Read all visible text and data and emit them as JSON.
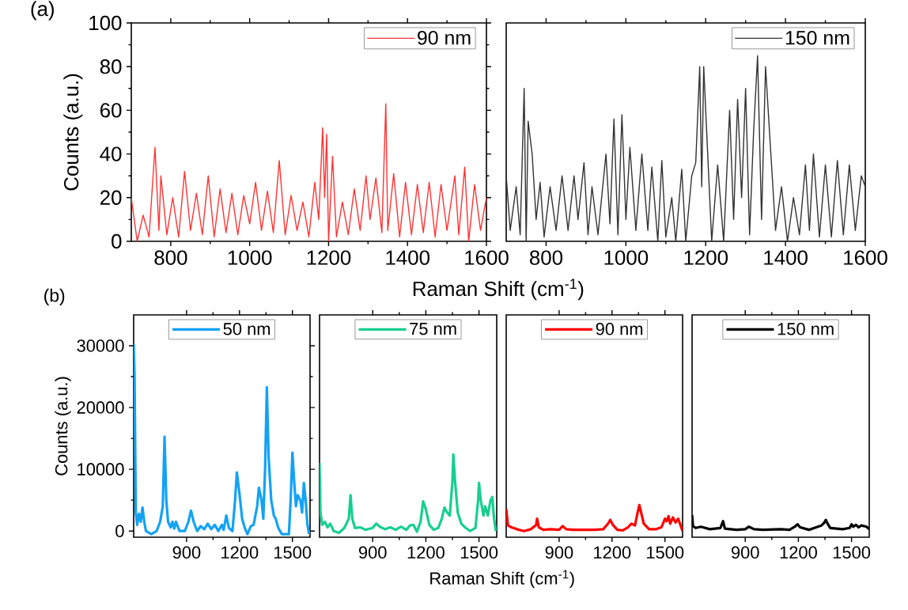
{
  "chart_data": [
    {
      "type": "line",
      "xlabel": "Raman Shift (cm$^{-1}$)",
      "ylabel": "Counts (a.u.)",
      "annotations": [
        "(a)"
      ],
      "xlim": [
        700,
        1600
      ],
      "ylim": [
        0,
        100
      ],
      "xticks": [
        800,
        1000,
        1200,
        1400,
        1600
      ],
      "yticks": [
        0,
        20,
        40,
        60,
        80,
        100
      ],
      "legend": "top right",
      "marker": "none",
      "line_style": "solid",
      "series": [
        {
          "name": "90 nm",
          "color": "#ff3333",
          "x": [
            700,
            715,
            730,
            745,
            760,
            770,
            775,
            790,
            805,
            820,
            835,
            850,
            865,
            880,
            895,
            910,
            925,
            940,
            955,
            970,
            985,
            1000,
            1015,
            1030,
            1045,
            1060,
            1075,
            1090,
            1105,
            1120,
            1135,
            1150,
            1165,
            1175,
            1185,
            1190,
            1195,
            1200,
            1210,
            1220,
            1235,
            1250,
            1265,
            1280,
            1295,
            1305,
            1320,
            1335,
            1345,
            1350,
            1365,
            1380,
            1395,
            1410,
            1425,
            1440,
            1455,
            1470,
            1485,
            1500,
            1520,
            1530,
            1545,
            1555,
            1570,
            1585,
            1600
          ],
          "values": [
            20,
            0,
            12,
            2,
            43,
            5,
            30,
            3,
            20,
            2,
            32,
            5,
            22,
            3,
            30,
            2,
            24,
            4,
            22,
            3,
            21,
            8,
            27,
            5,
            23,
            4,
            37,
            3,
            21,
            5,
            18,
            2,
            27,
            10,
            52,
            20,
            49,
            0,
            39,
            2,
            18,
            3,
            24,
            5,
            30,
            10,
            29,
            4,
            63,
            5,
            31,
            2,
            27,
            3,
            26,
            4,
            27,
            2,
            26,
            5,
            30,
            3,
            34,
            0,
            26,
            5,
            20
          ]
        }
      ]
    },
    {
      "type": "line",
      "xlim": [
        700,
        1600
      ],
      "ylim": [
        0,
        100
      ],
      "xticks": [
        800,
        1000,
        1200,
        1400,
        1600
      ],
      "tick_labels": "x",
      "legend": "top right",
      "marker": "none",
      "line_style": "solid",
      "series": [
        {
          "name": "150 nm",
          "color": "#333333",
          "x": [
            700,
            710,
            725,
            735,
            745,
            750,
            755,
            765,
            775,
            785,
            795,
            810,
            825,
            840,
            855,
            870,
            880,
            895,
            905,
            915,
            930,
            950,
            960,
            970,
            980,
            990,
            1000,
            1010,
            1025,
            1040,
            1055,
            1065,
            1080,
            1090,
            1100,
            1115,
            1125,
            1140,
            1150,
            1165,
            1175,
            1185,
            1190,
            1195,
            1205,
            1215,
            1230,
            1245,
            1260,
            1270,
            1280,
            1290,
            1300,
            1310,
            1320,
            1330,
            1340,
            1350,
            1360,
            1375,
            1390,
            1405,
            1420,
            1435,
            1450,
            1460,
            1470,
            1485,
            1500,
            1515,
            1530,
            1545,
            1560,
            1575,
            1590,
            1600
          ],
          "values": [
            30,
            5,
            25,
            3,
            70,
            0,
            55,
            40,
            10,
            27,
            2,
            25,
            5,
            30,
            5,
            30,
            10,
            36,
            3,
            25,
            3,
            40,
            8,
            56,
            3,
            58,
            10,
            43,
            5,
            40,
            5,
            34,
            0,
            37,
            2,
            20,
            0,
            33,
            0,
            30,
            36,
            80,
            25,
            80,
            40,
            0,
            35,
            0,
            60,
            10,
            65,
            20,
            70,
            3,
            50,
            85,
            10,
            80,
            50,
            5,
            25,
            0,
            20,
            3,
            35,
            5,
            40,
            2,
            35,
            2,
            37,
            3,
            35,
            5,
            30,
            25
          ]
        }
      ]
    },
    {
      "type": "line",
      "ylabel": "Counts (a.u.)",
      "annotations": [
        "(b)"
      ],
      "xlim": [
        600,
        1600
      ],
      "ylim": [
        -1000,
        35000
      ],
      "xticks": [
        900,
        1200,
        1500
      ],
      "yticks": [
        0,
        10000,
        20000,
        30000
      ],
      "legend": "top",
      "marker": "none",
      "line_style": "solid",
      "series": [
        {
          "name": "50 nm",
          "color": "#12a2f5",
          "x": [
            600,
            605,
            612,
            620,
            630,
            640,
            650,
            660,
            670,
            700,
            730,
            750,
            765,
            775,
            785,
            795,
            810,
            820,
            830,
            840,
            860,
            890,
            910,
            925,
            940,
            960,
            980,
            1000,
            1020,
            1040,
            1060,
            1080,
            1100,
            1110,
            1125,
            1140,
            1160,
            1175,
            1185,
            1200,
            1215,
            1230,
            1245,
            1265,
            1280,
            1300,
            1310,
            1325,
            1335,
            1345,
            1355,
            1365,
            1380,
            1395,
            1405,
            1420,
            1440,
            1480,
            1490,
            1500,
            1510,
            1520,
            1530,
            1545,
            1555,
            1565,
            1575,
            1585,
            1595
          ],
          "values": [
            30300,
            25000,
            3000,
            1000,
            2800,
            1500,
            3800,
            1500,
            0,
            -500,
            0,
            1500,
            4000,
            15300,
            5000,
            1500,
            600,
            1500,
            400,
            1500,
            0,
            0,
            1500,
            3300,
            1500,
            0,
            800,
            300,
            1200,
            300,
            1000,
            0,
            1000,
            200,
            2500,
            500,
            0,
            5000,
            9500,
            6000,
            2000,
            500,
            -500,
            800,
            1000,
            4000,
            7000,
            5000,
            2000,
            10000,
            23300,
            12000,
            5000,
            2500,
            2000,
            500,
            -500,
            -500,
            5000,
            12700,
            8000,
            4000,
            5800,
            5000,
            3000,
            7800,
            5000,
            1000,
            -500
          ]
        }
      ]
    },
    {
      "type": "line",
      "xlabel": "Raman Shift (cm$^{-1}$)",
      "xlim": [
        600,
        1600
      ],
      "ylim": [
        -1000,
        35000
      ],
      "xticks": [
        900,
        1200,
        1500
      ],
      "tick_labels": "x",
      "legend": "top",
      "marker": "none",
      "line_style": "solid",
      "series": [
        {
          "name": "75 nm",
          "color": "#17cf8f",
          "x": [
            600,
            605,
            615,
            630,
            645,
            660,
            680,
            710,
            740,
            765,
            775,
            785,
            800,
            830,
            860,
            900,
            920,
            940,
            970,
            1000,
            1030,
            1060,
            1090,
            1110,
            1130,
            1150,
            1170,
            1185,
            1200,
            1220,
            1245,
            1270,
            1290,
            1305,
            1320,
            1335,
            1350,
            1355,
            1365,
            1380,
            1400,
            1425,
            1450,
            1480,
            1495,
            1500,
            1510,
            1525,
            1535,
            1550,
            1565,
            1575,
            1585,
            1595
          ],
          "values": [
            11000,
            3000,
            1000,
            1500,
            600,
            1200,
            0,
            -300,
            500,
            2000,
            5800,
            2000,
            500,
            600,
            200,
            500,
            1200,
            700,
            300,
            600,
            200,
            700,
            200,
            900,
            1000,
            -100,
            1500,
            4800,
            3500,
            1000,
            200,
            500,
            2000,
            3800,
            3000,
            2500,
            8000,
            12400,
            8000,
            3000,
            1200,
            500,
            0,
            500,
            5000,
            7800,
            5000,
            2500,
            4000,
            2500,
            5000,
            5500,
            2000,
            0
          ]
        }
      ]
    },
    {
      "type": "line",
      "xlim": [
        600,
        1600
      ],
      "ylim": [
        -1000,
        35000
      ],
      "xticks": [
        900,
        1200,
        1500
      ],
      "tick_labels": "x",
      "legend": "top",
      "marker": "none",
      "line_style": "solid",
      "series": [
        {
          "name": "90 nm",
          "color": "#ff0000",
          "x": [
            600,
            610,
            630,
            660,
            700,
            740,
            770,
            775,
            785,
            810,
            850,
            900,
            920,
            940,
            980,
            1050,
            1100,
            1150,
            1180,
            1190,
            1205,
            1230,
            1260,
            1290,
            1310,
            1330,
            1345,
            1355,
            1365,
            1380,
            1410,
            1450,
            1480,
            1500,
            1510,
            1520,
            1530,
            1545,
            1560,
            1575,
            1590,
            1600
          ],
          "values": [
            3600,
            900,
            600,
            300,
            0,
            300,
            1000,
            2000,
            600,
            200,
            300,
            200,
            800,
            300,
            200,
            200,
            200,
            300,
            1300,
            1800,
            1000,
            200,
            100,
            600,
            1200,
            900,
            3000,
            4200,
            3000,
            1200,
            300,
            300,
            600,
            2000,
            1600,
            2400,
            1200,
            2200,
            1400,
            2000,
            800,
            0
          ]
        }
      ]
    },
    {
      "type": "line",
      "xlim": [
        600,
        1600
      ],
      "ylim": [
        -1000,
        35000
      ],
      "xticks": [
        900,
        1200,
        1500
      ],
      "tick_labels": "x",
      "legend": "top",
      "marker": "none",
      "line_style": "solid",
      "series": [
        {
          "name": "150 nm",
          "color": "#000000",
          "x": [
            600,
            605,
            620,
            650,
            700,
            760,
            775,
            785,
            850,
            900,
            920,
            950,
            1000,
            1100,
            1150,
            1180,
            1195,
            1210,
            1260,
            1300,
            1330,
            1345,
            1355,
            1365,
            1380,
            1450,
            1490,
            1500,
            1510,
            1525,
            1540,
            1555,
            1570,
            1585,
            1600
          ],
          "values": [
            2600,
            800,
            500,
            700,
            300,
            500,
            1600,
            400,
            200,
            300,
            700,
            300,
            200,
            300,
            200,
            700,
            1100,
            600,
            200,
            600,
            900,
            1300,
            1800,
            1200,
            500,
            300,
            500,
            1100,
            700,
            1000,
            600,
            900,
            800,
            700,
            300
          ]
        }
      ]
    }
  ]
}
